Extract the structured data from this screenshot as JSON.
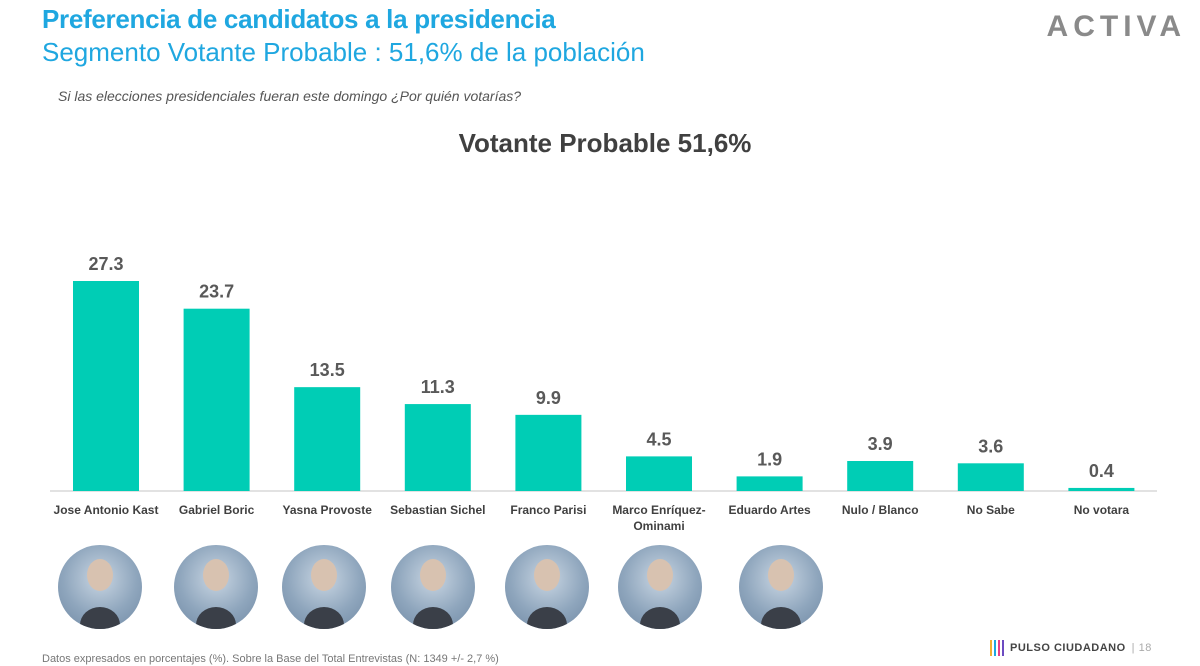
{
  "header": {
    "title": "Preferencia de candidatos a la presidencia",
    "subtitle": "Segmento Votante Probable : 51,6% de la población",
    "logo": "ACTIVA",
    "question": "Si las elecciones presidenciales fueran este domingo ¿Por quién votarías?"
  },
  "chart_data": {
    "type": "bar",
    "title": "Votante Probable 51,6%",
    "categories": [
      "Jose Antonio Kast",
      "Gabriel Boric",
      "Yasna Provoste",
      "Sebastian Sichel",
      "Franco Parisi",
      "Marco Enríquez-Ominami",
      "Eduardo Artes",
      "Nulo / Blanco",
      "No Sabe",
      "No votara"
    ],
    "values": [
      27.3,
      23.7,
      13.5,
      11.3,
      9.9,
      4.5,
      1.9,
      3.9,
      3.6,
      0.4
    ],
    "value_labels": [
      "27.3",
      "23.7",
      "13.5",
      "11.3",
      "9.9",
      "4.5",
      "1.9",
      "3.9",
      "3.6",
      "0.4"
    ],
    "color": "#00cdb5",
    "grid": false,
    "xlabel": "",
    "ylabel": ""
  },
  "portraits": [
    "Jose Antonio Kast",
    "Gabriel Boric",
    "Yasna Provoste",
    "Sebastian Sichel",
    "Franco Parisi",
    "Marco Enríquez-Ominami",
    "Eduardo Artes"
  ],
  "footer": {
    "note": "Datos expresados en porcentajes (%). Sobre la Base del Total Entrevistas (N:  1349  +/- 2,7 %)",
    "brand": "PULSO CIUDADANO",
    "page": "18"
  }
}
